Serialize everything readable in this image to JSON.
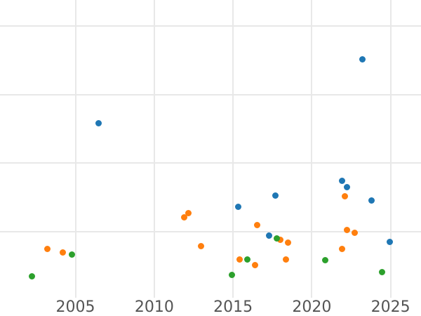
{
  "chart_data": {
    "type": "scatter",
    "title": "",
    "xlabel": "",
    "ylabel": "",
    "grid": true,
    "legend": false,
    "background_color": "#ffffff",
    "gridline_color": "#e8e8e8",
    "tick_label_color": "#545454",
    "x_axis": {
      "tick_labels": [
        "2005",
        "2010",
        "2015",
        "2020",
        "2025"
      ],
      "tick_values": [
        2005,
        2010,
        2015,
        2020,
        2025
      ],
      "range": [
        2000.21,
        2026.93
      ]
    },
    "y_axis": {
      "tick_labels_visible": false,
      "note": "y tick labels are cropped outside the screenshot; values expressed in gridline units (1 unit per horizontal gridline, bottom of plot near 0)",
      "gridline_values": [
        1,
        2,
        3,
        4
      ],
      "range": [
        -0.23,
        4.38
      ]
    },
    "series": [
      {
        "name": "blue",
        "color": "#1f77b4",
        "points": [
          {
            "x": 2006.45,
            "y": 2.58
          },
          {
            "x": 2015.35,
            "y": 1.36
          },
          {
            "x": 2017.31,
            "y": 0.94
          },
          {
            "x": 2017.71,
            "y": 1.53
          },
          {
            "x": 2021.9,
            "y": 1.74
          },
          {
            "x": 2022.21,
            "y": 1.65
          },
          {
            "x": 2023.23,
            "y": 3.51
          },
          {
            "x": 2023.81,
            "y": 1.46
          },
          {
            "x": 2024.93,
            "y": 0.85
          }
        ]
      },
      {
        "name": "orange",
        "color": "#ff7f0e",
        "points": [
          {
            "x": 2003.2,
            "y": 0.75
          },
          {
            "x": 2004.18,
            "y": 0.7
          },
          {
            "x": 2011.88,
            "y": 1.21
          },
          {
            "x": 2012.15,
            "y": 1.27
          },
          {
            "x": 2012.99,
            "y": 0.79
          },
          {
            "x": 2015.44,
            "y": 0.59
          },
          {
            "x": 2016.42,
            "y": 0.51
          },
          {
            "x": 2016.55,
            "y": 1.1
          },
          {
            "x": 2017.98,
            "y": 0.88
          },
          {
            "x": 2018.34,
            "y": 0.59
          },
          {
            "x": 2018.51,
            "y": 0.84
          },
          {
            "x": 2021.9,
            "y": 0.75
          },
          {
            "x": 2022.12,
            "y": 1.52
          },
          {
            "x": 2022.25,
            "y": 1.03
          },
          {
            "x": 2022.74,
            "y": 0.98
          }
        ]
      },
      {
        "name": "green",
        "color": "#2ca02c",
        "points": [
          {
            "x": 2002.22,
            "y": 0.35
          },
          {
            "x": 2004.76,
            "y": 0.67
          },
          {
            "x": 2014.91,
            "y": 0.37
          },
          {
            "x": 2015.89,
            "y": 0.59
          },
          {
            "x": 2017.8,
            "y": 0.9
          },
          {
            "x": 2020.83,
            "y": 0.58
          },
          {
            "x": 2024.44,
            "y": 0.41
          }
        ]
      }
    ]
  }
}
